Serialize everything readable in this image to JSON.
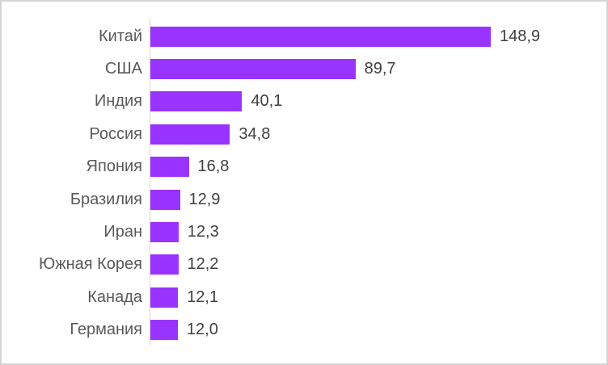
{
  "chart_data": {
    "type": "bar",
    "orientation": "horizontal",
    "title": "",
    "xlabel": "",
    "ylabel": "",
    "legend": null,
    "grid": false,
    "categories": [
      "Китай",
      "США",
      "Индия",
      "Россия",
      "Япония",
      "Бразилия",
      "Иран",
      "Южная Корея",
      "Канада",
      "Германия"
    ],
    "values": [
      148.9,
      89.7,
      40.1,
      34.8,
      16.8,
      12.9,
      12.3,
      12.2,
      12.1,
      12.0
    ],
    "value_labels": [
      "148,9",
      "89,7",
      "40,1",
      "34,8",
      "16,8",
      "12,9",
      "12,3",
      "12,2",
      "12,1",
      "12,0"
    ],
    "colors": {
      "bar": "#9933ff",
      "category_label": "#595959",
      "value_label": "#404040",
      "axis_line": "#d9d9d9",
      "frame_border": "#d5d5d5",
      "background": "#ffffff"
    }
  }
}
